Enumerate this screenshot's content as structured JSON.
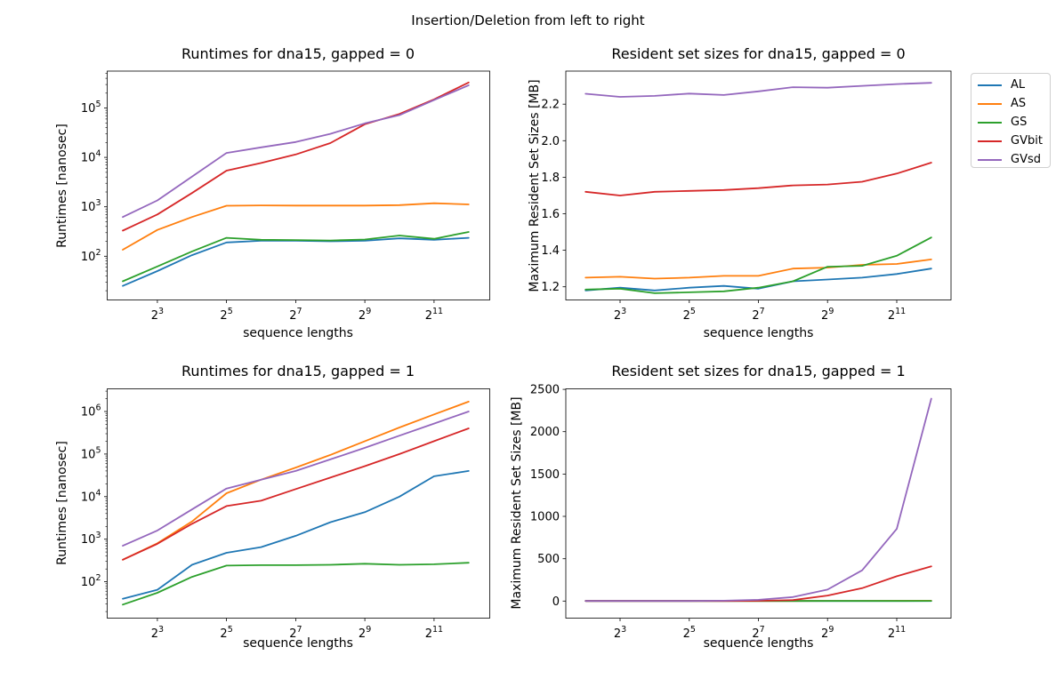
{
  "figure_title": "Insertion/Deletion from left to right",
  "legend": {
    "entries": [
      {
        "label": "AL",
        "color": "#1f77b4"
      },
      {
        "label": "AS",
        "color": "#ff7f0e"
      },
      {
        "label": "GS",
        "color": "#2ca02c"
      },
      {
        "label": "GVbit",
        "color": "#d62728"
      },
      {
        "label": "GVsd",
        "color": "#9467bd"
      }
    ]
  },
  "chart_data": [
    {
      "type": "line",
      "title": "Runtimes for dna15, gapped = 0",
      "xlabel": "sequence lengths",
      "ylabel": "Runtimes [nanosec]",
      "xscale": "log2",
      "yscale": "log10",
      "xlim_log2": [
        1.55,
        12.61
      ],
      "ylim": [
        13,
        560000
      ],
      "xticks": {
        "base": "2",
        "exponents": [
          3,
          5,
          7,
          9,
          11
        ]
      },
      "yticks": {
        "type": "log",
        "base": "10",
        "exponents": [
          2,
          3,
          4,
          5
        ]
      },
      "x": [
        4,
        8,
        16,
        32,
        64,
        128,
        256,
        512,
        1024,
        2048,
        4096
      ],
      "series": [
        {
          "name": "AL",
          "color": "#1f77b4",
          "values": [
            25,
            50,
            105,
            190,
            205,
            205,
            200,
            205,
            230,
            215,
            235
          ]
        },
        {
          "name": "AS",
          "color": "#ff7f0e",
          "values": [
            135,
            340,
            620,
            1050,
            1070,
            1060,
            1060,
            1060,
            1080,
            1180,
            1120
          ]
        },
        {
          "name": "GS",
          "color": "#2ca02c",
          "values": [
            31,
            62,
            125,
            235,
            215,
            212,
            208,
            218,
            262,
            225,
            310
          ]
        },
        {
          "name": "GVbit",
          "color": "#d62728",
          "values": [
            330,
            700,
            1900,
            5400,
            7700,
            11500,
            19500,
            47000,
            76000,
            150000,
            330000
          ]
        },
        {
          "name": "GVsd",
          "color": "#9467bd",
          "values": [
            620,
            1350,
            4100,
            12300,
            16000,
            20500,
            30000,
            49000,
            72000,
            145000,
            290000
          ]
        }
      ]
    },
    {
      "type": "line",
      "title": "Resident set sizes for dna15, gapped = 0",
      "xlabel": "sequence lengths",
      "ylabel": "Maximum Resident Set Sizes [MB]",
      "xscale": "log2",
      "yscale": "linear",
      "xlim_log2": [
        1.43,
        12.57
      ],
      "ylim": [
        1.128,
        2.381
      ],
      "xticks": {
        "base": "2",
        "exponents": [
          3,
          5,
          7,
          9,
          11
        ]
      },
      "yticks": {
        "type": "linear",
        "values": [
          1.2,
          1.4,
          1.6,
          1.8,
          2.0,
          2.2
        ],
        "labels": [
          "1.2",
          "1.4",
          "1.6",
          "1.8",
          "2.0",
          "2.2"
        ]
      },
      "x": [
        4,
        8,
        16,
        32,
        64,
        128,
        256,
        512,
        1024,
        2048,
        4096
      ],
      "series": [
        {
          "name": "AL",
          "color": "#1f77b4",
          "values": [
            1.18,
            1.195,
            1.18,
            1.195,
            1.205,
            1.19,
            1.23,
            1.24,
            1.25,
            1.27,
            1.3
          ]
        },
        {
          "name": "AS",
          "color": "#ff7f0e",
          "values": [
            1.25,
            1.255,
            1.245,
            1.25,
            1.26,
            1.26,
            1.3,
            1.305,
            1.32,
            1.325,
            1.35
          ]
        },
        {
          "name": "GS",
          "color": "#2ca02c",
          "values": [
            1.185,
            1.19,
            1.165,
            1.17,
            1.175,
            1.195,
            1.23,
            1.31,
            1.315,
            1.37,
            1.47
          ]
        },
        {
          "name": "GVbit",
          "color": "#d62728",
          "values": [
            1.72,
            1.7,
            1.72,
            1.725,
            1.73,
            1.74,
            1.755,
            1.76,
            1.775,
            1.82,
            1.88
          ]
        },
        {
          "name": "GVsd",
          "color": "#9467bd",
          "values": [
            2.257,
            2.24,
            2.245,
            2.258,
            2.25,
            2.27,
            2.293,
            2.29,
            2.3,
            2.31,
            2.317
          ]
        }
      ]
    },
    {
      "type": "line",
      "title": "Runtimes for dna15, gapped = 1",
      "xlabel": "sequence lengths",
      "ylabel": "Runtimes [nanosec]",
      "xscale": "log2",
      "yscale": "log10",
      "xlim_log2": [
        1.55,
        12.61
      ],
      "ylim": [
        14,
        3400000
      ],
      "xticks": {
        "base": "2",
        "exponents": [
          3,
          5,
          7,
          9,
          11
        ]
      },
      "yticks": {
        "type": "log",
        "base": "10",
        "exponents": [
          2,
          3,
          4,
          5,
          6
        ]
      },
      "x": [
        4,
        8,
        16,
        32,
        64,
        128,
        256,
        512,
        1024,
        2048,
        4096
      ],
      "series": [
        {
          "name": "AL",
          "color": "#1f77b4",
          "values": [
            40,
            65,
            250,
            480,
            650,
            1200,
            2500,
            4300,
            10000,
            30000,
            40000
          ]
        },
        {
          "name": "AS",
          "color": "#ff7f0e",
          "values": [
            330,
            800,
            2600,
            12000,
            25000,
            48000,
            95000,
            200000,
            420000,
            850000,
            1700000
          ]
        },
        {
          "name": "GS",
          "color": "#2ca02c",
          "values": [
            29,
            55,
            130,
            240,
            245,
            245,
            250,
            265,
            250,
            258,
            280
          ]
        },
        {
          "name": "GVbit",
          "color": "#d62728",
          "values": [
            330,
            780,
            2300,
            6000,
            8000,
            15000,
            28000,
            52000,
            100000,
            200000,
            400000
          ]
        },
        {
          "name": "GVsd",
          "color": "#9467bd",
          "values": [
            700,
            1600,
            5000,
            15500,
            25000,
            40000,
            75000,
            140000,
            270000,
            520000,
            1000000
          ]
        }
      ]
    },
    {
      "type": "line",
      "title": "Resident set sizes for dna15, gapped = 1",
      "xlabel": "sequence lengths",
      "ylabel": "Maximum Resident Set Sizes [MB]",
      "xscale": "log2",
      "yscale": "linear",
      "xlim_log2": [
        1.43,
        12.57
      ],
      "ylim": [
        -201,
        2506
      ],
      "xticks": {
        "base": "2",
        "exponents": [
          3,
          5,
          7,
          9,
          11
        ]
      },
      "yticks": {
        "type": "linear",
        "values": [
          0,
          500,
          1000,
          1500,
          2000,
          2500
        ],
        "labels": [
          "0",
          "500",
          "1000",
          "1500",
          "2000",
          "2500"
        ]
      },
      "x": [
        4,
        8,
        16,
        32,
        64,
        128,
        256,
        512,
        1024,
        2048,
        4096
      ],
      "series": [
        {
          "name": "AL",
          "color": "#1f77b4",
          "values": [
            1,
            1,
            1,
            1,
            1,
            1,
            2,
            2,
            2,
            2,
            2
          ]
        },
        {
          "name": "AS",
          "color": "#ff7f0e",
          "values": [
            1,
            1,
            1,
            1,
            1,
            2,
            2,
            3,
            3,
            4,
            5
          ]
        },
        {
          "name": "GS",
          "color": "#2ca02c",
          "values": [
            1,
            1,
            1,
            1,
            1,
            2,
            2,
            2,
            2,
            2,
            3
          ]
        },
        {
          "name": "GVbit",
          "color": "#d62728",
          "values": [
            1,
            1,
            1,
            2,
            2,
            4,
            12,
            66,
            153,
            293,
            410
          ]
        },
        {
          "name": "GVsd",
          "color": "#9467bd",
          "values": [
            1,
            1,
            2,
            2,
            5,
            15,
            48,
            136,
            363,
            852,
            2390
          ]
        }
      ]
    }
  ]
}
